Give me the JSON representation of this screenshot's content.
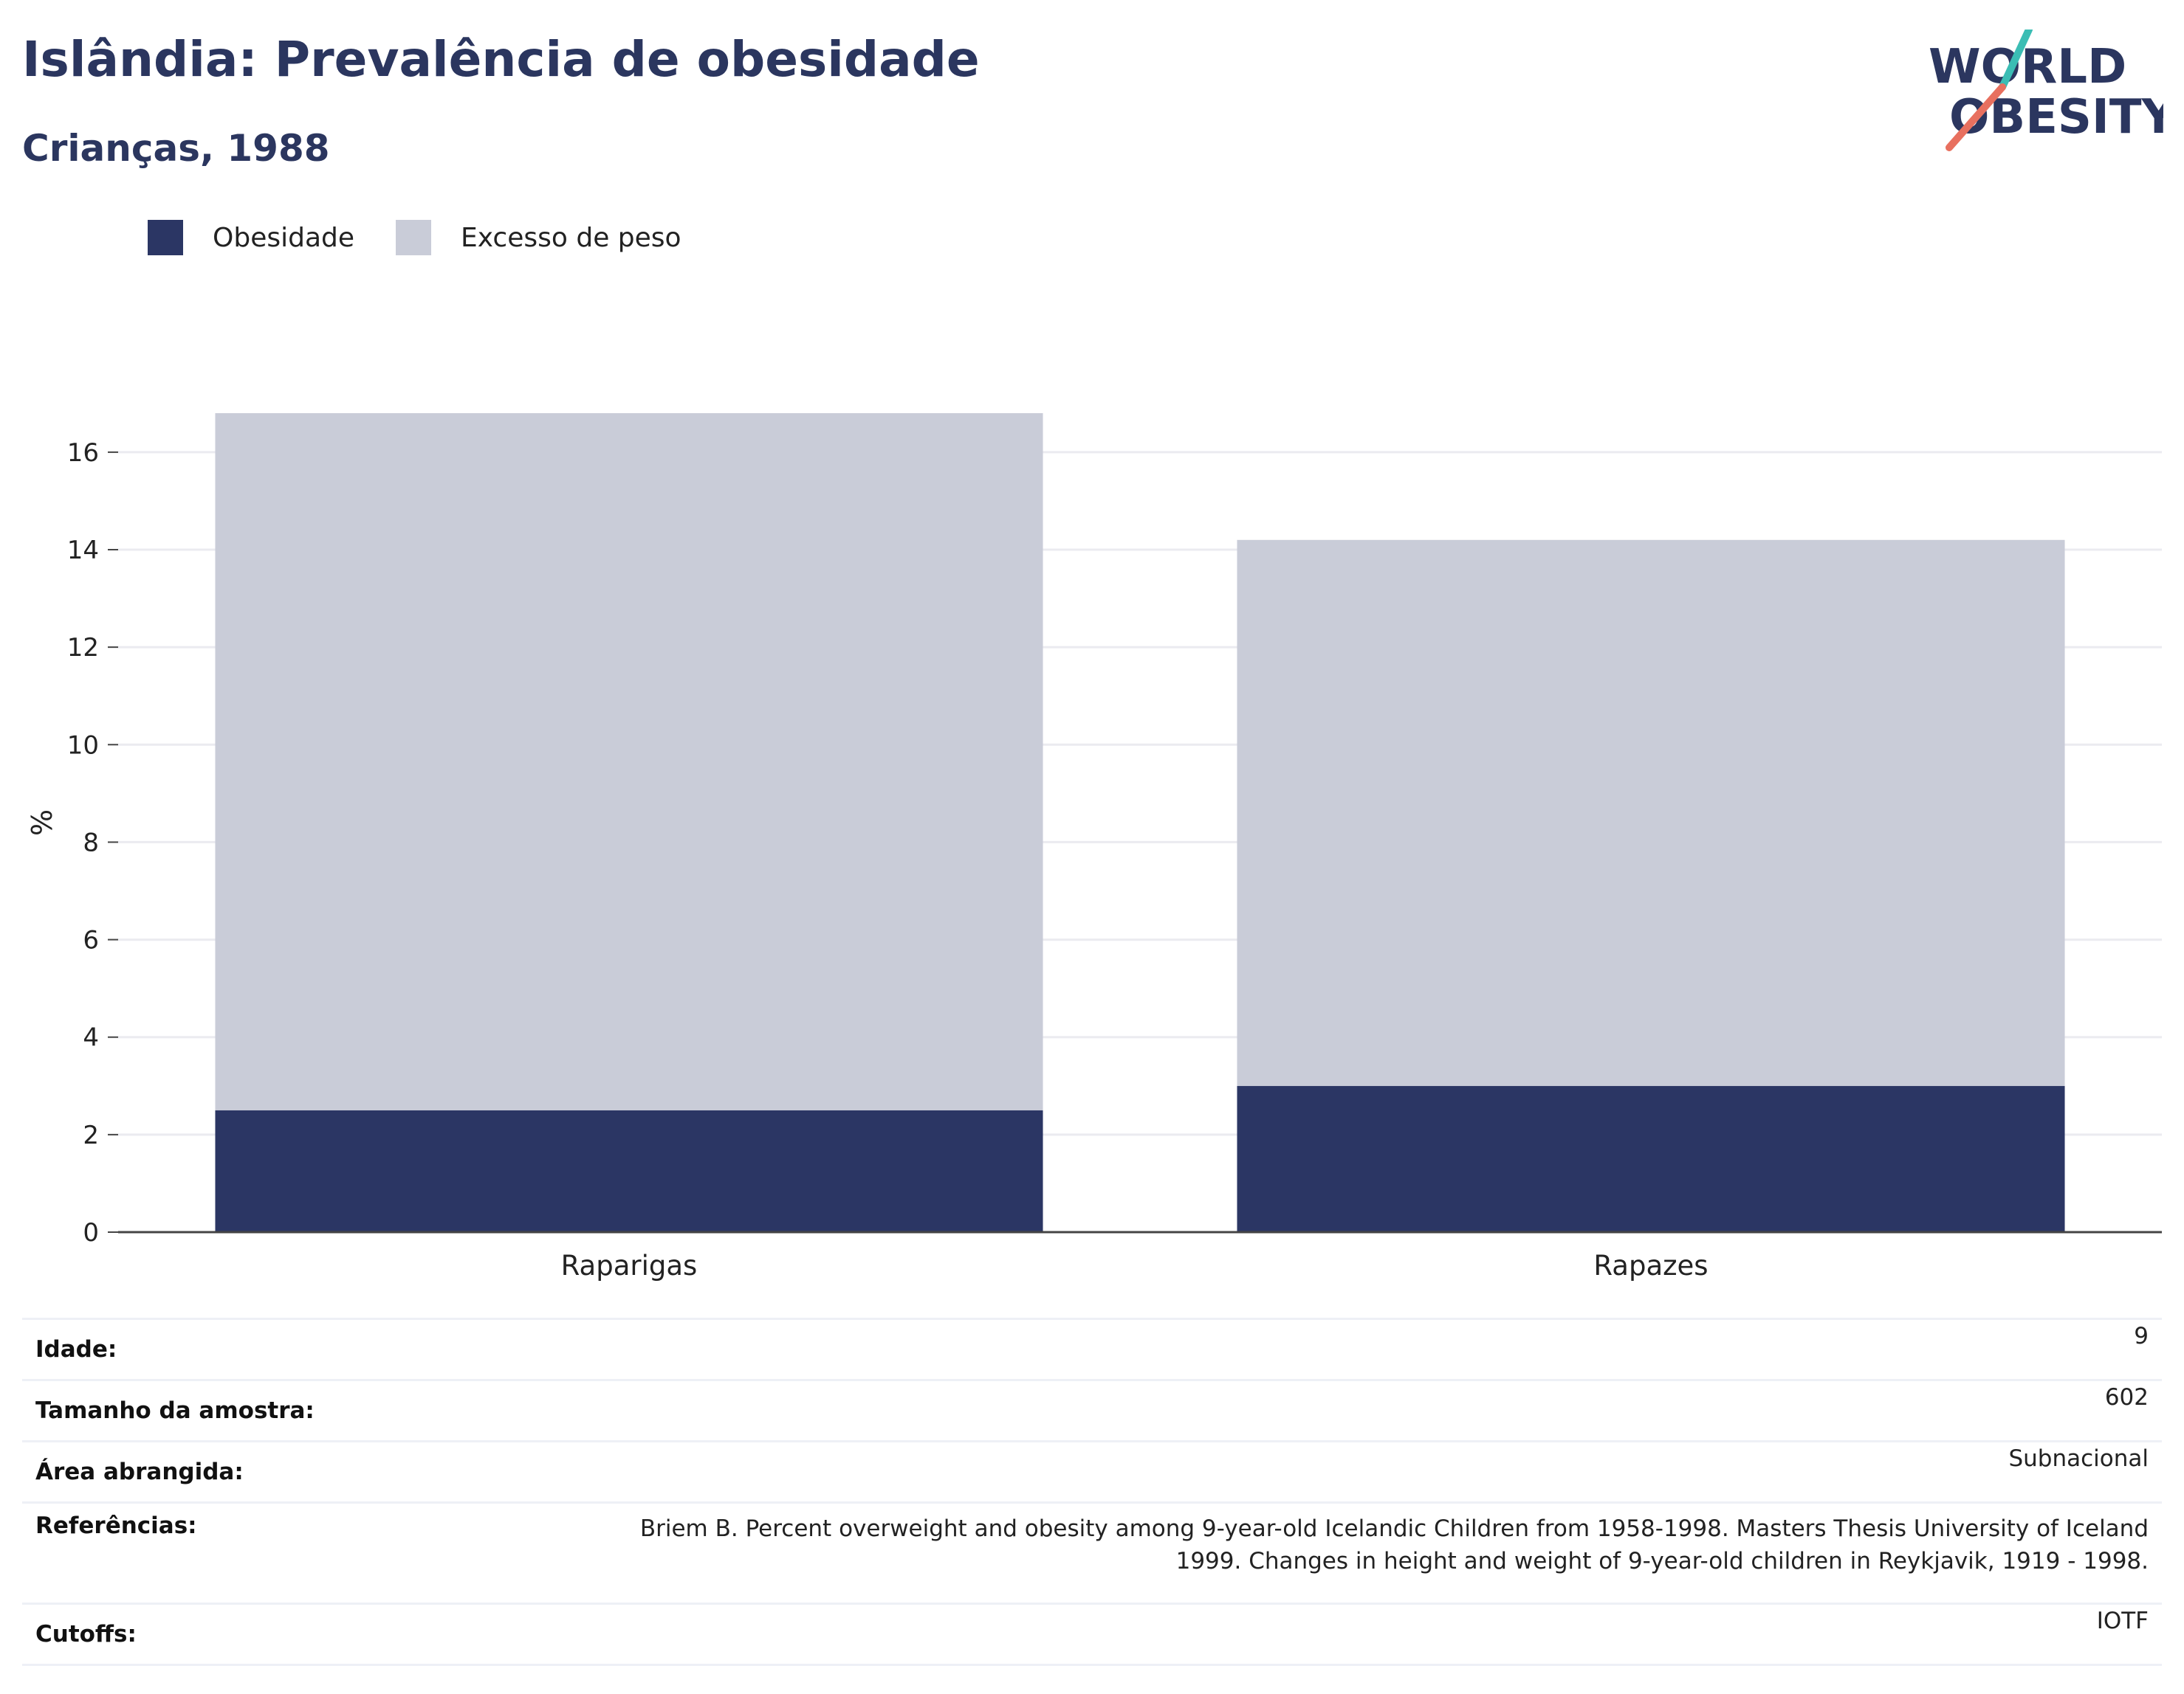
{
  "header": {
    "title": "Islândia: Prevalência de obesidade",
    "subtitle": "Crianças, 1988"
  },
  "logo": {
    "line1": "WORLD",
    "line2": "OBESITY",
    "colors": {
      "text": "#2b365f",
      "teal": "#3bbdb4",
      "coral": "#e8705f"
    }
  },
  "legend": [
    {
      "label": "Obesidade",
      "color": "#2b3664"
    },
    {
      "label": "Excesso de peso",
      "color": "#c9ccd8"
    }
  ],
  "chart_data": {
    "type": "bar",
    "stacked": true,
    "categories": [
      "Raparigas",
      "Rapazes"
    ],
    "series": [
      {
        "name": "Obesidade",
        "values": [
          2.5,
          3.0
        ],
        "color": "#2b3664"
      },
      {
        "name": "Excesso de peso",
        "values": [
          14.3,
          11.2
        ],
        "color": "#c9ccd8"
      }
    ],
    "ylabel": "%",
    "ylim": [
      0,
      16.8
    ],
    "yticks": [
      0,
      2,
      4,
      6,
      8,
      10,
      12,
      14,
      16
    ],
    "grid": true,
    "legend_position": "top-left"
  },
  "info": [
    {
      "label": "Idade:",
      "value": "9"
    },
    {
      "label": "Tamanho da amostra:",
      "value": "602"
    },
    {
      "label": "Área abrangida:",
      "value": "Subnacional"
    },
    {
      "label": "Referências:",
      "value_line1": "Briem B. Percent overweight and obesity among 9-year-old Icelandic Children from 1958-1998. Masters Thesis University of Iceland",
      "value_line2": "1999. Changes in height and weight of 9-year-old children in Reykjavik, 1919 - 1998."
    },
    {
      "label": "Cutoffs:",
      "value": "IOTF"
    }
  ]
}
